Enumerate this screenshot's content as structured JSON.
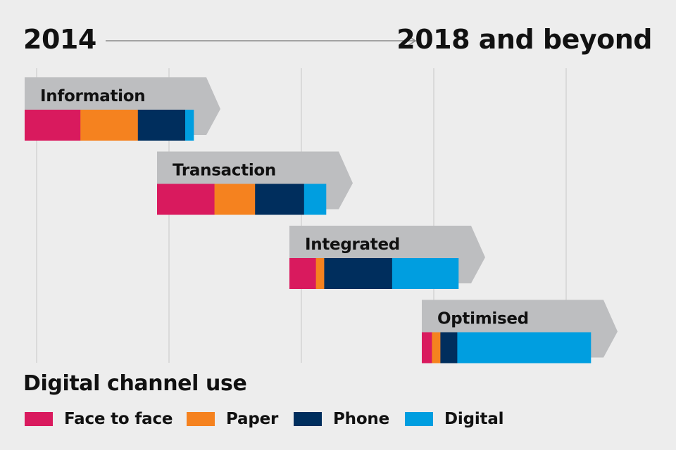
{
  "header": {
    "start_label": "2014",
    "end_label": "2018 and beyond"
  },
  "chart_data": {
    "type": "bar",
    "title": "Digital channel use",
    "xlabel": "",
    "ylabel": "",
    "timeline_start": "2014",
    "timeline_end": "2018 and beyond",
    "stacked": true,
    "orientation": "horizontal",
    "series_names": [
      "Face to face",
      "Paper",
      "Phone",
      "Digital"
    ],
    "colors": [
      "#d91a5e",
      "#f5821f",
      "#002e5d",
      "#009ee0"
    ],
    "categories": [
      "Information",
      "Transaction",
      "Integrated",
      "Optimised"
    ],
    "series": [
      {
        "name": "Face to face",
        "values": [
          33,
          34,
          16,
          6
        ]
      },
      {
        "name": "Paper",
        "values": [
          34,
          24,
          5,
          5
        ]
      },
      {
        "name": "Phone",
        "values": [
          28,
          29,
          41,
          10
        ]
      },
      {
        "name": "Digital",
        "values": [
          5,
          13,
          40,
          79
        ]
      }
    ],
    "stage_offsets": [
      0,
      1,
      2,
      3
    ],
    "xlim": [
      0,
      100
    ]
  },
  "legend": {
    "title": "Digital channel use",
    "items": [
      {
        "label": "Face to face",
        "color": "#d91a5e"
      },
      {
        "label": "Paper",
        "color": "#f5821f"
      },
      {
        "label": "Phone",
        "color": "#002e5d"
      },
      {
        "label": "Digital",
        "color": "#009ee0"
      }
    ]
  },
  "colors": {
    "background": "#ededed",
    "arrow_fill": "#bdbec0",
    "grid_line": "#c8c8c8",
    "timeline_arrow": "#8a8a8a",
    "text": "#111111"
  }
}
